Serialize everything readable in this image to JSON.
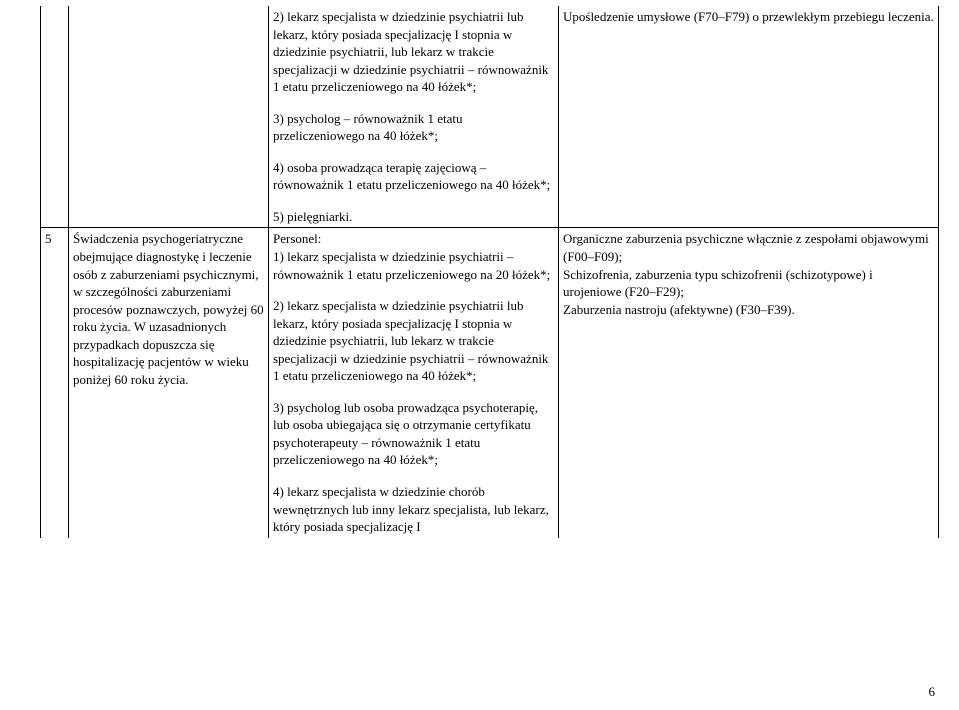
{
  "row_prev": {
    "col2": {
      "p1": "2) lekarz specjalista w dziedzinie psychiatrii lub lekarz, który posiada specjalizację I stopnia w dziedzinie psychiatrii, lub lekarz w trakcie specjalizacji w dziedzinie psychiatrii – równoważnik 1 etatu przeliczeniowego na 40 łóżek*;",
      "p2": "3) psycholog – równoważnik 1 etatu przeliczeniowego na 40 łóżek*;",
      "p3": "4) osoba prowadząca terapię zajęciową – równoważnik 1 etatu przeliczeniowego na 40 łóżek*;",
      "p4": "5) pielęgniarki."
    },
    "col3": "Upośledzenie umysłowe (F70–F79) o przewlekłym przebiegu leczenia."
  },
  "row5": {
    "num": "5",
    "col1": "Świadczenia psychogeriatryczne obejmujące diagnostykę i leczenie osób z zaburzeniami psychicznymi, w szczególności zaburzeniami procesów poznawczych, powyżej 60 roku życia. W uzasadnionych przypadkach dopuszcza się hospitalizację pacjentów  w wieku poniżej 60 roku życia.",
    "col2": {
      "p1": "Personel:",
      "p2": "1) lekarz specjalista w dziedzinie psychiatrii – równoważnik 1 etatu przeliczeniowego na 20 łóżek*;",
      "p3": "2) lekarz specjalista w dziedzinie psychiatrii lub lekarz, który posiada specjalizację I stopnia w dziedzinie psychiatrii, lub lekarz w trakcie specjalizacji w dziedzinie psychiatrii – równoważnik 1 etatu przeliczeniowego na 40 łóżek*;",
      "p4": "3) psycholog lub osoba prowadząca psychoterapię, lub osoba ubiegająca się o otrzymanie certyfikatu psychoterapeuty – równoważnik 1 etatu przeliczeniowego na 40 łóżek*;",
      "p5": "4) lekarz specjalista w dziedzinie chorób wewnętrznych lub inny lekarz specjalista, lub lekarz, który posiada specjalizację I"
    },
    "col3": {
      "p1": "Organiczne zaburzenia psychiczne włącznie z zespołami objawowymi (F00–F09);",
      "p2": "Schizofrenia, zaburzenia typu schizofrenii (schizotypowe) i urojeniowe (F20–F29);",
      "p3": "Zaburzenia nastroju (afektywne) (F30–F39)."
    }
  },
  "page_number": "6"
}
